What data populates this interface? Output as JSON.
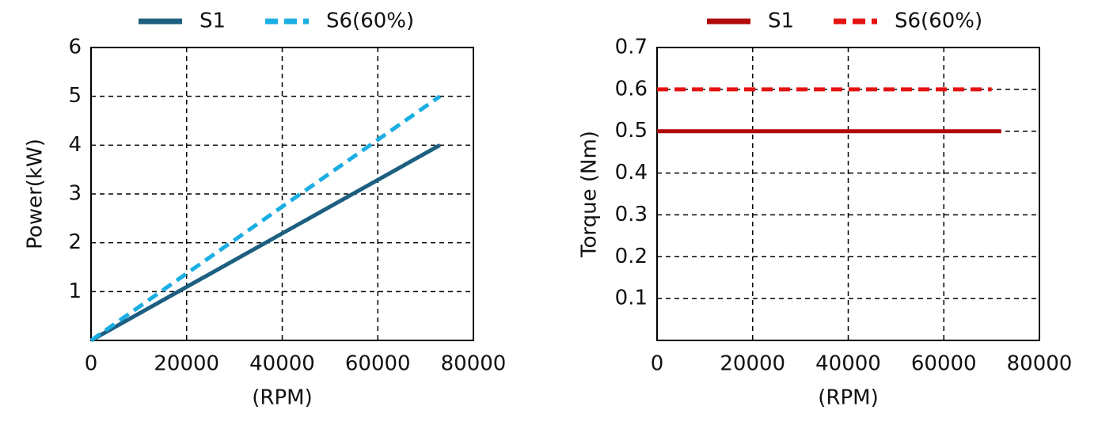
{
  "chart_data": [
    {
      "type": "line",
      "xlabel": "(RPM)",
      "ylabel": "Power(kW)",
      "xlim": [
        0,
        80000
      ],
      "ylim": [
        0,
        6
      ],
      "xticks": [
        0,
        20000,
        40000,
        60000,
        80000
      ],
      "yticks": [
        1,
        2,
        3,
        4,
        5,
        6
      ],
      "grid": true,
      "series": [
        {
          "name": "S1",
          "color": "#1c5f80",
          "dash": false,
          "x": [
            0,
            73000
          ],
          "values": [
            0,
            4.0
          ]
        },
        {
          "name": "S6(60%)",
          "color": "#1aaee2",
          "dash": true,
          "x": [
            0,
            73000
          ],
          "values": [
            0,
            5.0
          ]
        }
      ]
    },
    {
      "type": "line",
      "xlabel": "(RPM)",
      "ylabel": "Torque  (Nm)",
      "xlim": [
        0,
        80000
      ],
      "ylim": [
        0,
        0.7
      ],
      "xticks": [
        0,
        20000,
        40000,
        60000,
        80000
      ],
      "yticks": [
        0.1,
        0.2,
        0.3,
        0.4,
        0.5,
        0.6,
        0.7
      ],
      "grid": true,
      "series": [
        {
          "name": "S1",
          "color": "#b00a0a",
          "dash": false,
          "x": [
            0,
            72000
          ],
          "values": [
            0.5,
            0.5
          ]
        },
        {
          "name": "S6(60%)",
          "color": "#e51212",
          "dash": true,
          "x": [
            0,
            70000
          ],
          "values": [
            0.6,
            0.6
          ]
        }
      ]
    }
  ]
}
